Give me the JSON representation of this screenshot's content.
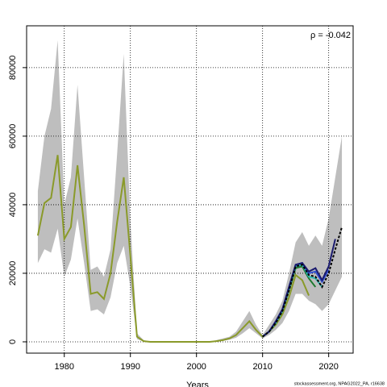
{
  "chart_data": {
    "type": "line",
    "annotation": "ρ = -0.042",
    "footer": "stockassessment.org, NPAG2022_PA, r16638",
    "xlabel": "Years",
    "x": [
      1976,
      1977,
      1978,
      1979,
      1980,
      1981,
      1982,
      1983,
      1984,
      1985,
      1986,
      1987,
      1988,
      1989,
      1990,
      1991,
      1992,
      1993,
      1994,
      1995,
      1996,
      1997,
      1998,
      1999,
      2000,
      2001,
      2002,
      2003,
      2004,
      2005,
      2006,
      2007,
      2008,
      2009,
      2010,
      2011,
      2012,
      2013,
      2014,
      2015,
      2016,
      2017,
      2018,
      2019,
      2020,
      2021,
      2022
    ],
    "band": {
      "color": "#bebebe",
      "upper": [
        44000,
        60000,
        68000,
        88000,
        40000,
        48000,
        75000,
        48000,
        21000,
        22000,
        19000,
        27000,
        55000,
        84000,
        35000,
        2500,
        500,
        0,
        0,
        0,
        0,
        0,
        0,
        0,
        0,
        0,
        0,
        500,
        1000,
        1500,
        3000,
        6000,
        9000,
        5000,
        2000,
        5000,
        8000,
        12000,
        20000,
        29000,
        32000,
        28000,
        31000,
        28000,
        36000,
        48000,
        60000
      ],
      "lower": [
        23000,
        27000,
        26000,
        33000,
        19000,
        24000,
        36000,
        23000,
        9000,
        9500,
        8000,
        13000,
        23000,
        28000,
        16000,
        800,
        100,
        0,
        0,
        0,
        0,
        0,
        0,
        0,
        0,
        0,
        0,
        100,
        300,
        600,
        1200,
        2500,
        4000,
        2500,
        1000,
        2000,
        3500,
        5500,
        9000,
        14000,
        14000,
        12000,
        11000,
        9000,
        11000,
        15000,
        19000
      ]
    },
    "series": [
      {
        "color": "#8a9a2a",
        "values": [
          31000,
          40500,
          42000,
          54500,
          30000,
          33500,
          51500,
          34000,
          14000,
          14500,
          12500,
          20000,
          35000,
          48000,
          25000,
          1500,
          200,
          0,
          0,
          0,
          0,
          0,
          0,
          0,
          0,
          0,
          0,
          200,
          500,
          1000,
          2000,
          4000,
          6000,
          3500,
          1500,
          3000,
          5000,
          8000,
          13000,
          19500,
          18000,
          13500,
          null,
          null,
          null,
          null,
          null
        ]
      },
      {
        "color": "#1e7a2e",
        "values": [
          null,
          null,
          null,
          null,
          null,
          null,
          null,
          null,
          null,
          null,
          null,
          null,
          null,
          null,
          null,
          null,
          null,
          null,
          null,
          null,
          null,
          null,
          null,
          null,
          null,
          null,
          null,
          null,
          null,
          null,
          null,
          null,
          null,
          null,
          1500,
          3000,
          5500,
          9000,
          15000,
          21500,
          22000,
          18500,
          16000,
          null,
          null,
          null,
          null
        ]
      },
      {
        "color": "#2ab8b0",
        "values": [
          null,
          null,
          null,
          null,
          null,
          null,
          null,
          null,
          null,
          null,
          null,
          null,
          null,
          null,
          null,
          null,
          null,
          null,
          null,
          null,
          null,
          null,
          null,
          null,
          null,
          null,
          null,
          null,
          null,
          null,
          null,
          null,
          null,
          null,
          1500,
          3000,
          5500,
          9000,
          15500,
          22000,
          22500,
          19000,
          18500,
          16000,
          null,
          null,
          null
        ]
      },
      {
        "color": "#3050d0",
        "values": [
          null,
          null,
          null,
          null,
          null,
          null,
          null,
          null,
          null,
          null,
          null,
          null,
          null,
          null,
          null,
          null,
          null,
          null,
          null,
          null,
          null,
          null,
          null,
          null,
          null,
          null,
          null,
          null,
          null,
          null,
          null,
          null,
          null,
          null,
          1500,
          3000,
          6000,
          9500,
          16000,
          22500,
          23000,
          20000,
          20500,
          17500,
          21000,
          null,
          null
        ]
      },
      {
        "color": "#1a1a6e",
        "values": [
          null,
          null,
          null,
          null,
          null,
          null,
          null,
          null,
          null,
          null,
          null,
          null,
          null,
          null,
          null,
          null,
          null,
          null,
          null,
          null,
          null,
          null,
          null,
          null,
          null,
          null,
          null,
          null,
          null,
          null,
          null,
          null,
          null,
          null,
          1500,
          3000,
          6000,
          9500,
          16000,
          22500,
          23000,
          20500,
          21500,
          18000,
          22000,
          30000,
          null
        ]
      },
      {
        "color": "#000000",
        "dashed": true,
        "values": [
          null,
          null,
          null,
          null,
          null,
          null,
          null,
          null,
          null,
          null,
          null,
          null,
          null,
          null,
          null,
          null,
          null,
          null,
          null,
          null,
          null,
          null,
          null,
          null,
          null,
          null,
          null,
          null,
          null,
          null,
          null,
          null,
          null,
          null,
          1500,
          3000,
          5500,
          9000,
          15000,
          22000,
          22500,
          19500,
          19000,
          16000,
          20000,
          27000,
          33500
        ]
      }
    ],
    "xlim": [
      1974.3,
      2023.7
    ],
    "ylim": [
      -3300,
      92200
    ],
    "xticks": [
      1980,
      1990,
      2000,
      2010,
      2020
    ],
    "yticks": [
      0,
      20000,
      40000,
      60000,
      80000
    ],
    "grid": true
  }
}
